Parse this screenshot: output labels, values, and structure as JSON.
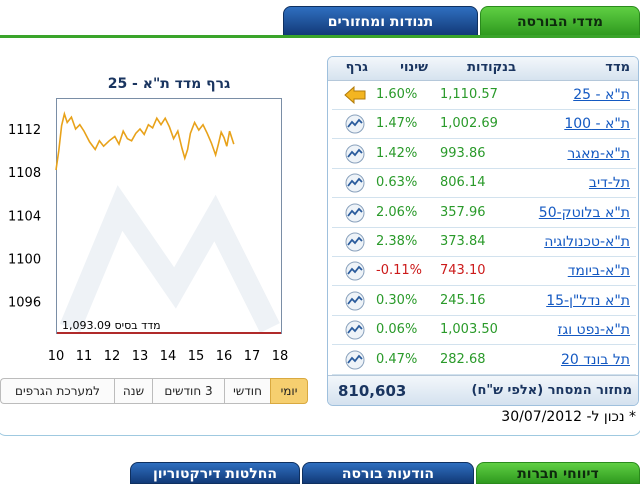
{
  "tabs": {
    "market_indices": "מדדי הבורסה",
    "movers": "תנודות ומחזורים"
  },
  "chart": {
    "title": "גרף מדד ת\"א - 25",
    "base_label": "1,093.09 מדד בסיס"
  },
  "chart_data": {
    "type": "line",
    "title": "גרף מדד ת\"א - 25",
    "xlabel": "",
    "ylabel": "",
    "x_ticks": [
      "10",
      "11",
      "12",
      "13",
      "14",
      "15",
      "16",
      "17",
      "18"
    ],
    "y_ticks": [
      "1096",
      "1100",
      "1104",
      "1108",
      "1112"
    ],
    "ylim": [
      1093.09,
      1114.5
    ],
    "xlim": [
      10,
      18
    ],
    "base_value": 1093.09,
    "series": [
      {
        "values": [
          [
            10.0,
            1108.2
          ],
          [
            10.1,
            1110.0
          ],
          [
            10.2,
            1112.3
          ],
          [
            10.3,
            1113.4
          ],
          [
            10.4,
            1112.6
          ],
          [
            10.55,
            1113.1
          ],
          [
            10.7,
            1112.0
          ],
          [
            10.85,
            1112.4
          ],
          [
            11.0,
            1111.8
          ],
          [
            11.2,
            1110.8
          ],
          [
            11.4,
            1110.1
          ],
          [
            11.55,
            1110.9
          ],
          [
            11.7,
            1110.4
          ],
          [
            11.9,
            1110.9
          ],
          [
            12.1,
            1111.3
          ],
          [
            12.25,
            1110.6
          ],
          [
            12.4,
            1111.8
          ],
          [
            12.55,
            1111.1
          ],
          [
            12.7,
            1110.9
          ],
          [
            12.85,
            1111.6
          ],
          [
            13.0,
            1112.0
          ],
          [
            13.15,
            1111.5
          ],
          [
            13.3,
            1112.4
          ],
          [
            13.45,
            1112.1
          ],
          [
            13.6,
            1113.0
          ],
          [
            13.75,
            1112.4
          ],
          [
            13.9,
            1113.0
          ],
          [
            14.05,
            1112.2
          ],
          [
            14.2,
            1111.1
          ],
          [
            14.35,
            1111.8
          ],
          [
            14.5,
            1110.2
          ],
          [
            14.6,
            1109.3
          ],
          [
            14.7,
            1110.1
          ],
          [
            14.8,
            1111.6
          ],
          [
            14.95,
            1112.6
          ],
          [
            15.1,
            1111.9
          ],
          [
            15.25,
            1112.4
          ],
          [
            15.4,
            1111.6
          ],
          [
            15.55,
            1110.7
          ],
          [
            15.7,
            1109.6
          ],
          [
            15.8,
            1110.6
          ],
          [
            15.9,
            1111.7
          ],
          [
            16.0,
            1111.2
          ],
          [
            16.1,
            1110.4
          ],
          [
            16.2,
            1111.8
          ],
          [
            16.35,
            1110.6
          ]
        ]
      }
    ],
    "grid": false,
    "legend": "none"
  },
  "ranges": [
    {
      "label": "למערכת הגרפים",
      "active": false
    },
    {
      "label": "שנה",
      "active": false
    },
    {
      "label": "3 חודשים",
      "active": false
    },
    {
      "label": "חודשי",
      "active": false
    },
    {
      "label": "יומי",
      "active": true
    }
  ],
  "table": {
    "headers": {
      "index": "מדד",
      "points": "בנקודות",
      "change": "שינוי",
      "graph": "גרף"
    },
    "rows": [
      {
        "name": "ת\"א - 25",
        "points": "1,110.57",
        "change": "1.60%",
        "negative": false,
        "graph_icon": "arrow-left-icon"
      },
      {
        "name": "ת\"א - 100",
        "points": "1,002.69",
        "change": "1.47%",
        "negative": false,
        "graph_icon": "chart-icon"
      },
      {
        "name": "ת\"א-מאגר",
        "points": "993.86",
        "change": "1.42%",
        "negative": false,
        "graph_icon": "chart-icon"
      },
      {
        "name": "תל-דיב",
        "points": "806.14",
        "change": "0.63%",
        "negative": false,
        "graph_icon": "chart-icon"
      },
      {
        "name": "ת\"א בלוטק-50",
        "points": "357.96",
        "change": "2.06%",
        "negative": false,
        "graph_icon": "chart-icon"
      },
      {
        "name": "ת\"א-טכנולוגיה",
        "points": "373.84",
        "change": "2.38%",
        "negative": false,
        "graph_icon": "chart-icon"
      },
      {
        "name": "ת\"א-ביומד",
        "points": "743.10",
        "change": "-0.11%",
        "negative": true,
        "graph_icon": "chart-icon"
      },
      {
        "name": "ת\"א נדל\"ן-15",
        "points": "245.16",
        "change": "0.30%",
        "negative": false,
        "graph_icon": "chart-icon"
      },
      {
        "name": "ת\"א-נפט וגז",
        "points": "1,003.50",
        "change": "0.06%",
        "negative": false,
        "graph_icon": "chart-icon"
      },
      {
        "name": "תל בונד 20",
        "points": "282.68",
        "change": "0.47%",
        "negative": false,
        "graph_icon": "chart-icon"
      }
    ],
    "footer_label": "מחזור המסחר (אלפי ש\"ח)",
    "footer_value": "810,603"
  },
  "update_note": "* נכון ל- 30/07/2012",
  "bottom_tabs": {
    "companies": "דיווחי חברות",
    "exchange": "הודעות בורסה",
    "directors": "החלטות דירקטוריון"
  },
  "colors": {
    "positive": "#2a9a2a",
    "negative": "#cc1a1a",
    "link": "#1459c2",
    "series_line": "#e8a21a",
    "base_line": "#b02a2a"
  }
}
